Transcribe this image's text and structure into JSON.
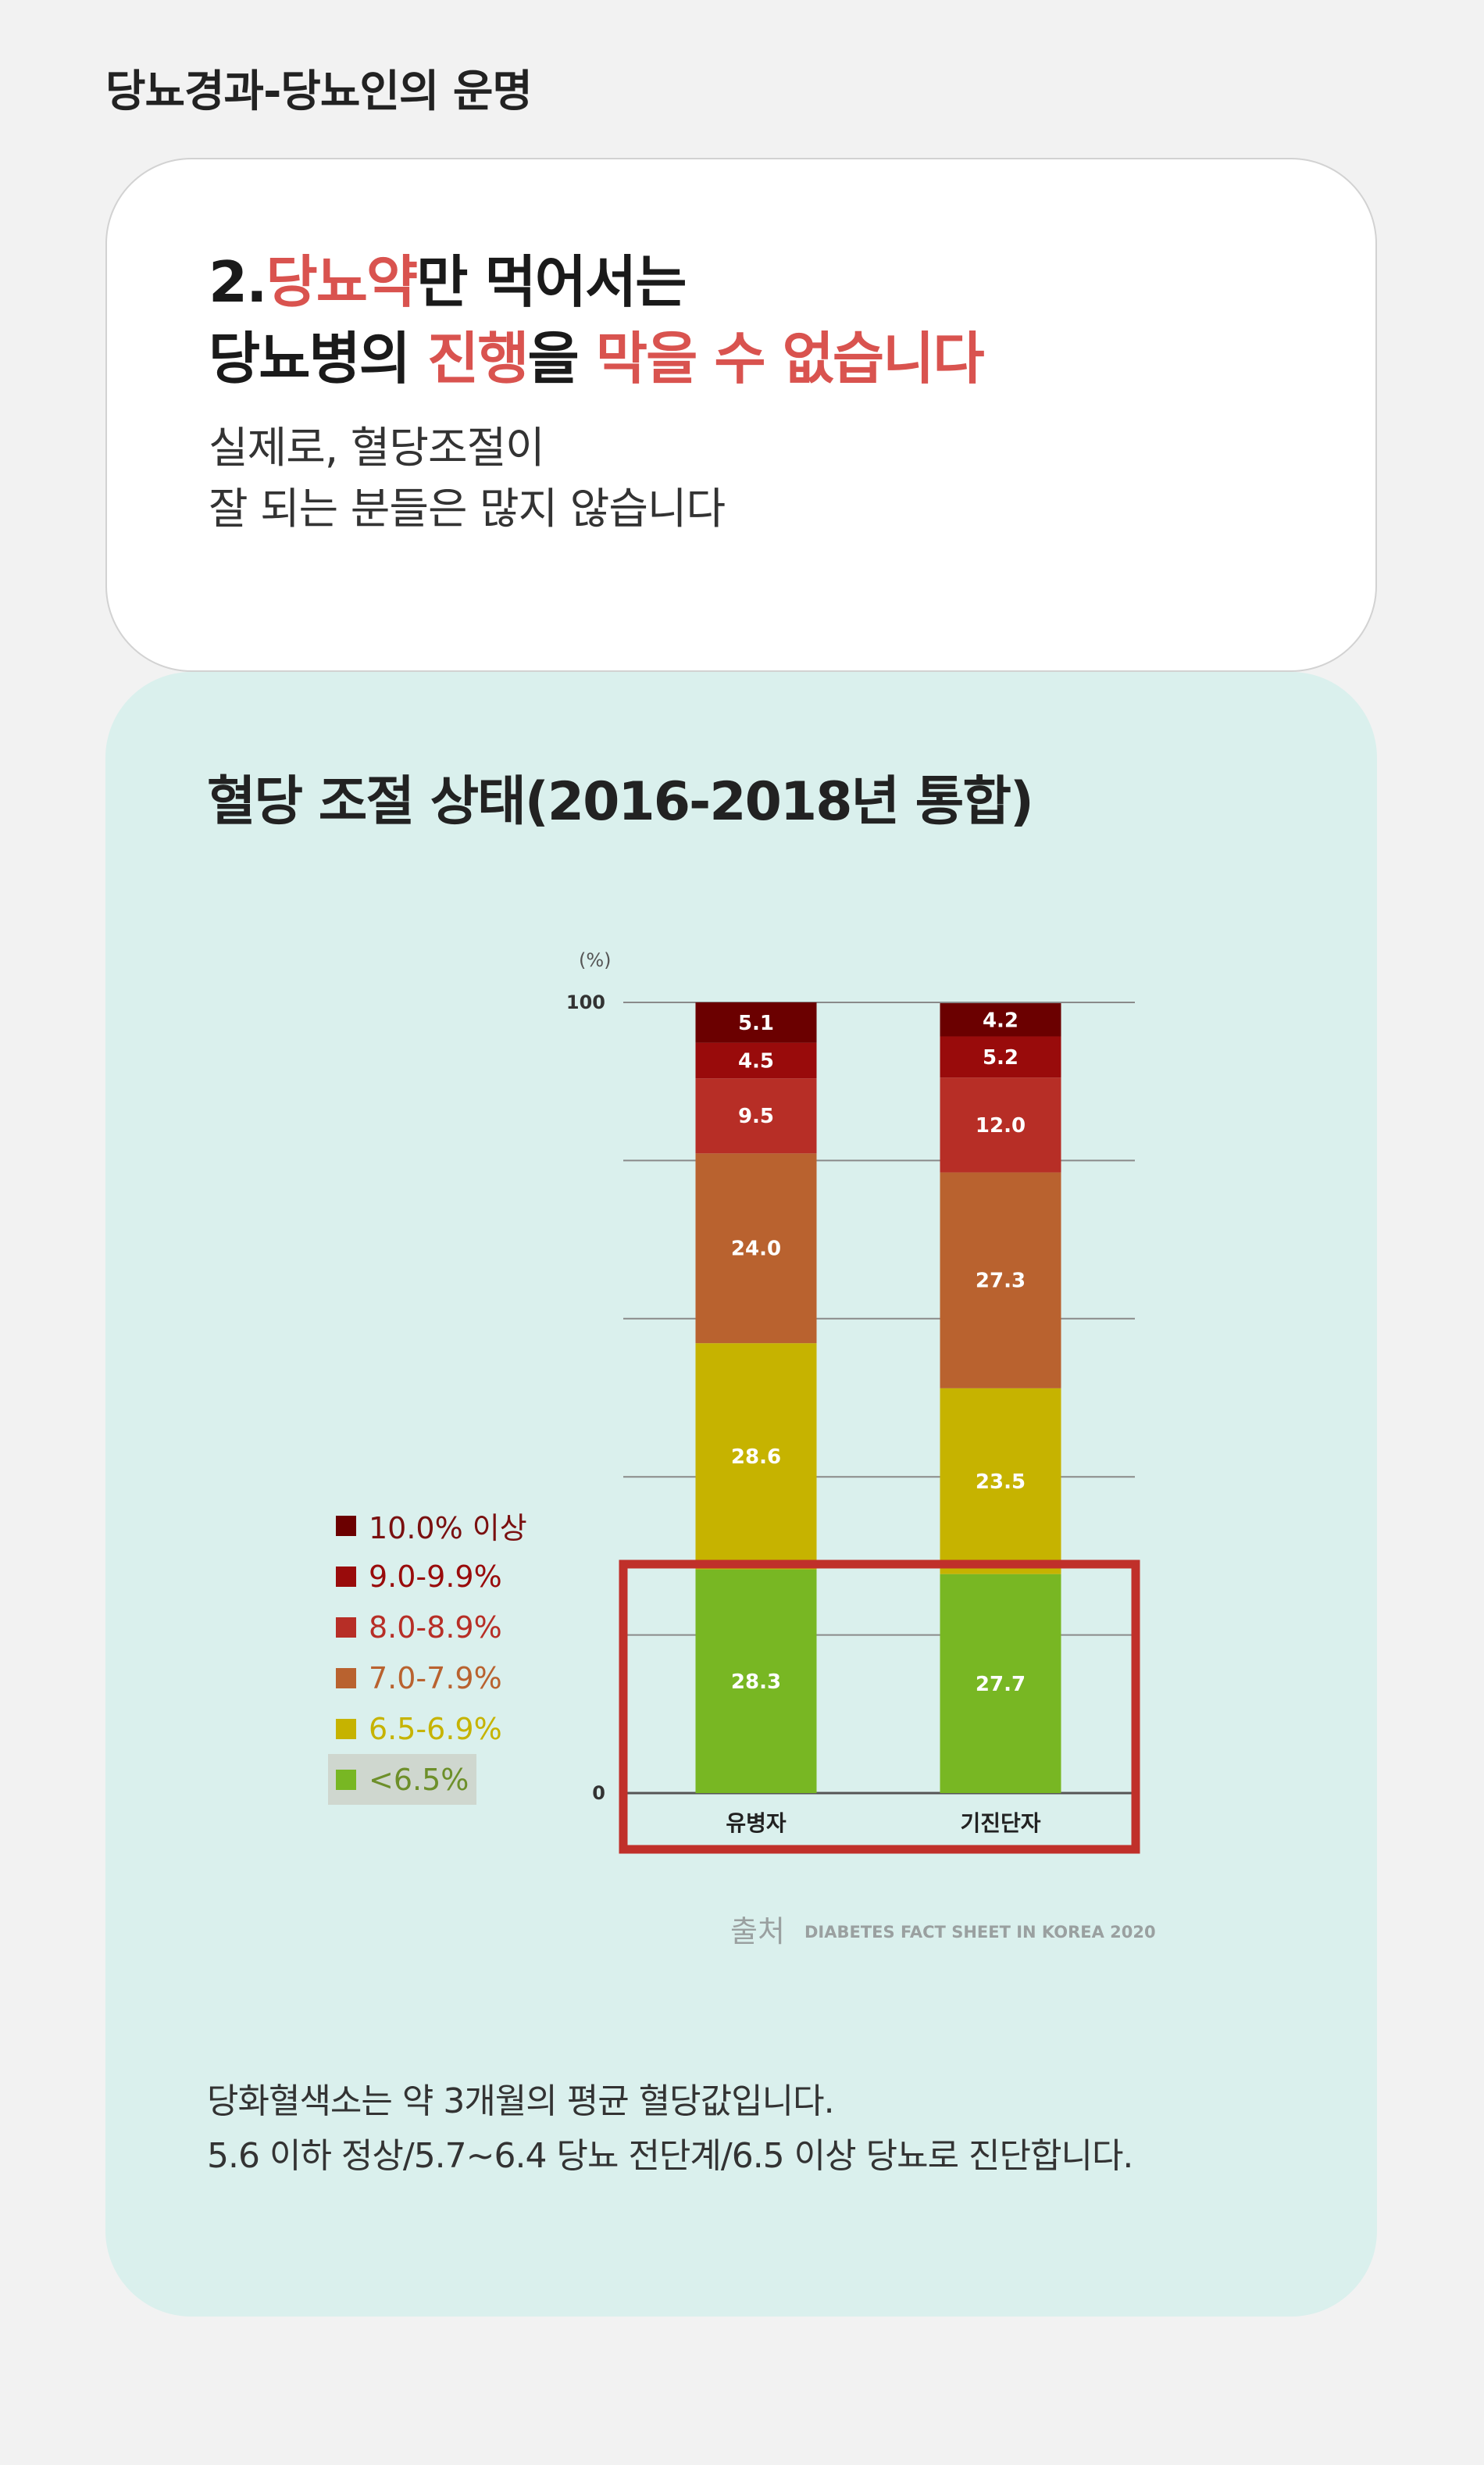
{
  "header": {
    "title": "당뇨경과-당뇨인의 운명"
  },
  "intro": {
    "line1": {
      "a": "2.",
      "b": "당뇨약",
      "c": "만 먹어서는"
    },
    "line2": {
      "a": "당뇨병의 ",
      "b": "진행",
      "c": "을 ",
      "d": "막을 수 없습니다"
    },
    "sub1": "실제로, 혈당조절이",
    "sub2": "잘 되는 분들은 많지 않습니다"
  },
  "chart_section": {
    "title": "혈당 조절 상태(2016-2018년 통합)",
    "source_label": "출처",
    "source_text": "DIABETES FACT SHEET IN KOREA 2020",
    "note1": "당화혈색소는 약 3개월의 평균 혈당값입니다.",
    "note2": "5.6 이하 정상/5.7~6.4 당뇨 전단계/6.5 이상 당뇨로 진단합니다."
  },
  "chart_data": {
    "type": "bar",
    "stacked": true,
    "unit_label": "(%)",
    "y_ticks": [
      "100",
      "0"
    ],
    "ylim": [
      0,
      100
    ],
    "categories": [
      "유병자",
      "기진단자"
    ],
    "series": [
      {
        "name": "<6.5%",
        "color": "#78b723",
        "text_color": "#6d8f2a",
        "values": [
          28.3,
          27.7
        ]
      },
      {
        "name": "6.5-6.9%",
        "color": "#c6b300",
        "text_color": "#c6b300",
        "values": [
          28.6,
          23.5
        ]
      },
      {
        "name": "7.0-7.9%",
        "color": "#b9622f",
        "text_color": "#b9622f",
        "values": [
          24.0,
          27.3
        ]
      },
      {
        "name": "8.0-8.9%",
        "color": "#b72e26",
        "text_color": "#b72e26",
        "values": [
          9.5,
          12.0
        ]
      },
      {
        "name": "9.0-9.9%",
        "color": "#990b0b",
        "text_color": "#990b0b",
        "values": [
          4.5,
          5.2
        ]
      },
      {
        "name": "10.0% 이상",
        "color": "#6b0000",
        "text_color": "#7a1010",
        "values": [
          5.1,
          4.2
        ]
      }
    ],
    "value_labels": [
      [
        "28.3",
        "28.6",
        "24.0",
        "9.5",
        "4.5",
        "5.1"
      ],
      [
        "27.7",
        "23.5",
        "27.3",
        "12.0",
        "5.2",
        "4.2"
      ]
    ],
    "highlight_series": "<6.5%",
    "highlight_color": "#c0302a",
    "grid": true,
    "legend_position": "left"
  }
}
